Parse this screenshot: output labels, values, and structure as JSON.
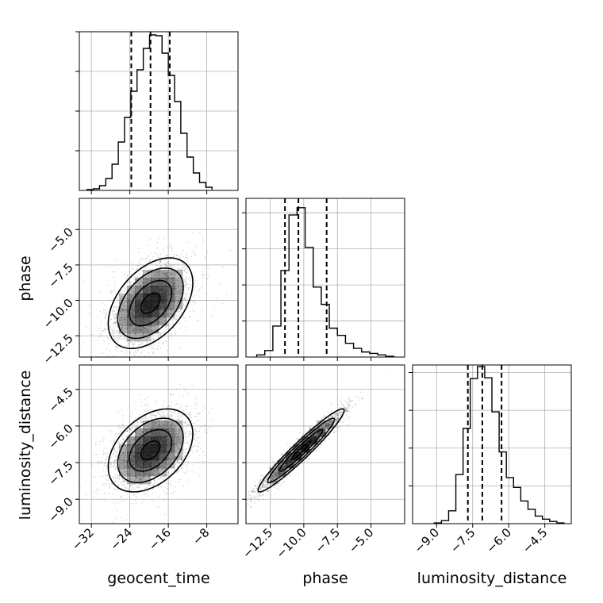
{
  "chart_data": {
    "type": "corner",
    "parameters": [
      "geocent_time",
      "phase",
      "luminosity_distance"
    ],
    "diagonal": [
      {
        "name": "geocent_time",
        "xlim": [
          -34.5,
          -1.5
        ],
        "ticks": [
          -32,
          -24,
          -16,
          -8
        ],
        "tick_labels": [
          "−32",
          "−24",
          "−16",
          "−8"
        ],
        "bin_edges": [
          -32.9,
          -31.6,
          -30.3,
          -29.0,
          -27.7,
          -26.4,
          -25.1,
          -23.8,
          -22.5,
          -21.2,
          -19.9,
          -18.6,
          -17.3,
          -16.0,
          -14.7,
          -13.4,
          -12.1,
          -10.8,
          -9.5,
          -8.2,
          -6.9
        ],
        "counts": [
          0.01,
          0.02,
          0.06,
          0.15,
          0.33,
          0.61,
          0.92,
          1.25,
          1.52,
          1.79,
          1.96,
          1.95,
          1.73,
          1.45,
          1.12,
          0.72,
          0.42,
          0.22,
          0.1,
          0.04,
          0.01
        ],
        "quantiles": [
          -23.7,
          -19.7,
          -15.7
        ],
        "ylim": [
          0,
          2.0
        ]
      },
      {
        "name": "phase",
        "xlim": [
          -14.3,
          -2.5
        ],
        "ticks": [
          -12.5,
          -10.0,
          -7.5,
          -5.0
        ],
        "tick_labels": [
          "−12.5",
          "−10.0",
          "−7.5",
          "−5.0"
        ],
        "bin_edges": [
          -13.5,
          -12.9,
          -12.3,
          -11.7,
          -11.1,
          -10.5,
          -9.9,
          -9.3,
          -8.7,
          -8.1,
          -7.5,
          -6.9,
          -6.3,
          -5.7,
          -5.1,
          -4.5,
          -3.9,
          -3.3
        ],
        "counts": [
          0.03,
          0.09,
          0.43,
          1.2,
          1.97,
          2.07,
          1.52,
          0.97,
          0.73,
          0.4,
          0.3,
          0.19,
          0.12,
          0.07,
          0.05,
          0.03,
          0.01
        ],
        "quantiles": [
          -11.4,
          -10.4,
          -8.3
        ],
        "ylim": [
          0,
          2.2
        ]
      },
      {
        "name": "luminosity_distance",
        "xlim": [
          -10.0,
          -3.4
        ],
        "ticks": [
          -9.0,
          -7.5,
          -6.0,
          -4.5
        ],
        "tick_labels": [
          "−9.0",
          "−7.5",
          "−6.0",
          "−4.5"
        ],
        "bin_edges": [
          -9.1,
          -8.8,
          -8.5,
          -8.2,
          -7.9,
          -7.6,
          -7.3,
          -7.0,
          -6.7,
          -6.4,
          -6.1,
          -5.8,
          -5.5,
          -5.2,
          -4.9,
          -4.6,
          -4.3,
          -4.0,
          -3.7
        ],
        "counts": [
          0.01,
          0.04,
          0.17,
          0.65,
          1.26,
          1.92,
          2.08,
          1.93,
          1.48,
          0.95,
          0.61,
          0.48,
          0.3,
          0.19,
          0.1,
          0.06,
          0.03,
          0.01
        ],
        "quantiles": [
          -7.7,
          -7.1,
          -6.3
        ],
        "ylim": [
          0,
          2.1
        ]
      }
    ],
    "pairs": [
      {
        "x": "geocent_time",
        "y": "phase",
        "ylim": [
          -14.0,
          -2.8
        ],
        "yticks": [
          -12.5,
          -10.0,
          -7.5,
          -5.0
        ],
        "ytick_labels": [
          "−12.5",
          "−10.0",
          "−7.5",
          "−5.0"
        ],
        "mean": [
          -19.7,
          -10.2
        ],
        "sd": [
          4.4,
          1.6
        ],
        "corr": 0.45,
        "contour_levels": [
          0.5,
          1.0,
          1.5,
          2.0
        ]
      },
      {
        "x": "geocent_time",
        "y": "luminosity_distance",
        "ylim": [
          -10.0,
          -3.5
        ],
        "yticks": [
          -9.0,
          -7.5,
          -6.0,
          -4.5
        ],
        "ytick_labels": [
          "−9.0",
          "−7.5",
          "−6.0",
          "−4.5"
        ],
        "mean": [
          -19.7,
          -7.0
        ],
        "sd": [
          4.4,
          0.85
        ],
        "corr": 0.4,
        "contour_levels": [
          0.5,
          1.0,
          1.5,
          2.0
        ]
      },
      {
        "x": "phase",
        "y": "luminosity_distance",
        "ylim": [
          -10.0,
          -3.5
        ],
        "yticks": [],
        "ytick_labels": [],
        "mean": [
          -10.2,
          -7.0
        ],
        "sd": [
          1.6,
          0.85
        ],
        "corr": 0.96,
        "contour_levels": [
          0.5,
          1.0,
          1.5,
          2.0
        ]
      }
    ],
    "axis_labels": {
      "geocent_time": "geocent_time",
      "phase": "phase",
      "luminosity_distance": "luminosity_distance"
    },
    "grid": true,
    "colors": {
      "line": "#000000",
      "grid": "#b0b0b0",
      "points": "#000000"
    }
  }
}
